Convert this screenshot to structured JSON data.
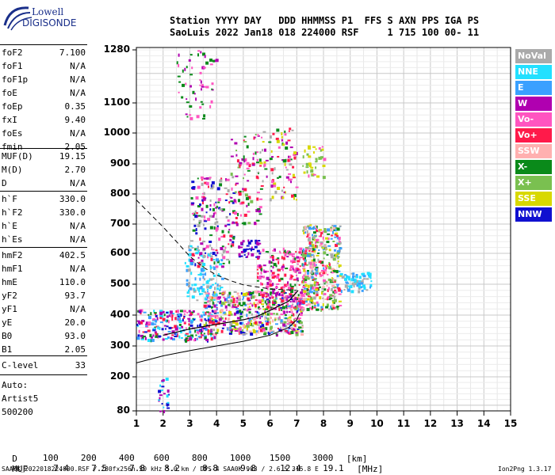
{
  "logo": {
    "line1": "Lowell",
    "line2": "DIGISONDE"
  },
  "header": {
    "line1": "Station YYYY DAY   DDD HHMMSS P1  FFS S AXN PPS IGA PS",
    "line2": "SaoLuis 2022 Jan18 018 224000 RSF     1 715 100 00- 11"
  },
  "params_group1": [
    {
      "name": "foF2",
      "value": "7.100"
    },
    {
      "name": "foF1",
      "value": "N/A"
    },
    {
      "name": "foF1p",
      "value": "N/A"
    },
    {
      "name": "foE",
      "value": "N/A"
    },
    {
      "name": "foEp",
      "value": "0.35"
    },
    {
      "name": "fxI",
      "value": "9.40"
    },
    {
      "name": "foEs",
      "value": "N/A"
    },
    {
      "name": "fmin",
      "value": "2.05"
    }
  ],
  "params_group2": [
    {
      "name": "MUF(D)",
      "value": "19.15"
    },
    {
      "name": "M(D)",
      "value": "2.70"
    },
    {
      "name": "D",
      "value": "N/A"
    }
  ],
  "params_group3": [
    {
      "name": "h`F",
      "value": "330.0"
    },
    {
      "name": "h`F2",
      "value": "330.0"
    },
    {
      "name": "h`E",
      "value": "N/A"
    },
    {
      "name": "h`Es",
      "value": "N/A"
    }
  ],
  "params_group4": [
    {
      "name": "hmF2",
      "value": "402.5"
    },
    {
      "name": "hmF1",
      "value": "N/A"
    },
    {
      "name": "hmE",
      "value": "110.0"
    },
    {
      "name": "yF2",
      "value": "93.7"
    },
    {
      "name": "yF1",
      "value": "N/A"
    },
    {
      "name": "yE",
      "value": "20.0"
    },
    {
      "name": "B0",
      "value": "93.0"
    },
    {
      "name": "B1",
      "value": "2.05"
    }
  ],
  "params_group5": [
    {
      "name": "C-level",
      "value": "33"
    }
  ],
  "autoscaling": {
    "line1": "Auto:",
    "line2": "Artist5",
    "line3": "500200"
  },
  "legend": [
    {
      "label": "NoVal",
      "color": "#aaaaaa"
    },
    {
      "label": "NNE",
      "color": "#22e0ff"
    },
    {
      "label": "E",
      "color": "#3aa0ff"
    },
    {
      "label": "W",
      "color": "#b000b0"
    },
    {
      "label": "Vo-",
      "color": "#ff55c0"
    },
    {
      "label": "Vo+",
      "color": "#ff1a4a"
    },
    {
      "label": "SSW",
      "color": "#ffb0b0"
    },
    {
      "label": "X-",
      "color": "#0a8a1a"
    },
    {
      "label": "X+",
      "color": "#7ac050"
    },
    {
      "label": "SSE",
      "color": "#d8d800"
    },
    {
      "label": "NNW",
      "color": "#1010d0"
    }
  ],
  "muf_table": {
    "d_label": "D",
    "d_values": [
      "100",
      "200",
      "400",
      "600",
      "800",
      "1000",
      "1500",
      "3000"
    ],
    "d_unit": "[km]",
    "muf_label": "MUF",
    "muf_values": [
      "7.4",
      "7.5",
      "7.8",
      "8.2",
      "8.8",
      "9.8",
      "12.4",
      "19.1"
    ],
    "muf_unit": "[MHz]"
  },
  "footer": {
    "info": "SAA0K_2022018224000.RSF / 280fx256h 50 kHz 5.0 km / DPS-4 SAA0K 903 / 2.6 S 315.8 E",
    "version": "Ion2Png 1.3.17"
  },
  "chart_data": {
    "type": "scatter",
    "title": "",
    "xlabel": "",
    "ylabel": "",
    "xlim": [
      1,
      15
    ],
    "ylim": [
      80,
      1280
    ],
    "x_ticks": [
      "1",
      "2",
      "3",
      "4",
      "5",
      "6",
      "7",
      "8",
      "9",
      "10",
      "11",
      "12",
      "13",
      "14",
      "15"
    ],
    "y_ticks": [
      "80",
      "200",
      "300",
      "400",
      "500",
      "600",
      "700",
      "800",
      "900",
      "1000",
      "1100",
      "1280"
    ],
    "y_tick_values": [
      80,
      200,
      300,
      400,
      500,
      600,
      700,
      800,
      900,
      1000,
      1100,
      1280
    ],
    "grid": true,
    "profile_curve": [
      [
        1.0,
        245
      ],
      [
        2.0,
        268
      ],
      [
        3.0,
        285
      ],
      [
        4.0,
        300
      ],
      [
        5.0,
        315
      ],
      [
        6.0,
        335
      ],
      [
        6.7,
        360
      ],
      [
        7.0,
        385
      ],
      [
        7.1,
        405
      ]
    ],
    "profile_upper": [
      [
        2.0,
        335
      ],
      [
        3.0,
        355
      ],
      [
        4.0,
        370
      ],
      [
        5.0,
        385
      ],
      [
        5.5,
        395
      ],
      [
        6.0,
        415
      ],
      [
        6.7,
        445
      ],
      [
        7.05,
        480
      ]
    ],
    "dashed_curve": [
      [
        1.0,
        780
      ],
      [
        1.5,
        735
      ],
      [
        2.0,
        690
      ],
      [
        2.5,
        640
      ],
      [
        3.0,
        590
      ],
      [
        3.5,
        555
      ],
      [
        4.0,
        530
      ],
      [
        4.5,
        512
      ],
      [
        5.0,
        498
      ],
      [
        6.0,
        485
      ],
      [
        7.0,
        480
      ]
    ],
    "clusters": [
      {
        "x": [
          1.0,
          4.0
        ],
        "y": [
          320,
          420
        ],
        "n": 260,
        "series": "mix_low"
      },
      {
        "x": [
          3.5,
          7.2
        ],
        "y": [
          340,
          480
        ],
        "n": 520,
        "series": "mix_main"
      },
      {
        "x": [
          5.5,
          7.3
        ],
        "y": [
          420,
          620
        ],
        "n": 240,
        "series": "mix_pink"
      },
      {
        "x": [
          7.2,
          8.6
        ],
        "y": [
          420,
          700
        ],
        "n": 420,
        "series": "mix_x"
      },
      {
        "x": [
          8.6,
          9.8
        ],
        "y": [
          480,
          540
        ],
        "n": 70,
        "series": "e_tail"
      },
      {
        "x": [
          3.0,
          4.6
        ],
        "y": [
          560,
          860
        ],
        "n": 180,
        "series": "upper_left"
      },
      {
        "x": [
          4.5,
          5.6
        ],
        "y": [
          700,
          1000
        ],
        "n": 90,
        "series": "upper_mid"
      },
      {
        "x": [
          5.5,
          7.0
        ],
        "y": [
          780,
          1020
        ],
        "n": 100,
        "series": "upper_right"
      },
      {
        "x": [
          7.2,
          8.0
        ],
        "y": [
          860,
          960
        ],
        "n": 40,
        "series": "upper_far"
      },
      {
        "x": [
          2.8,
          4.2
        ],
        "y": [
          450,
          630
        ],
        "n": 110,
        "series": "nne"
      },
      {
        "x": [
          4.8,
          5.6
        ],
        "y": [
          590,
          650
        ],
        "n": 40,
        "series": "nnw"
      },
      {
        "x": [
          2.5,
          4.0
        ],
        "y": [
          1050,
          1280
        ],
        "n": 60,
        "series": "top"
      },
      {
        "x": [
          1.8,
          2.2
        ],
        "y": [
          80,
          200
        ],
        "n": 25,
        "series": "bottom"
      }
    ]
  }
}
